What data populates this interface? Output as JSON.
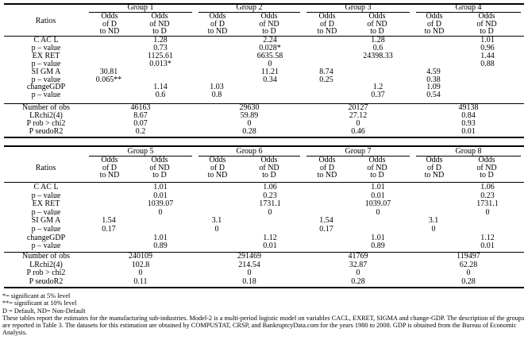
{
  "table1": {
    "ratios_label": "Ratios",
    "groups": [
      "Group 1",
      "Group 2",
      "Group 3",
      "Group 4"
    ],
    "col_heads": [
      "Odds\nof D\nto ND",
      "Odds\nof ND\nto D"
    ],
    "rows": [
      {
        "label": "C AC L",
        "cells": [
          "",
          "1.28",
          "",
          "2.24",
          "",
          "1.28",
          "",
          "1.01"
        ]
      },
      {
        "label": "p – value",
        "cells": [
          "",
          "0.73",
          "",
          "0.028*",
          "",
          "0.6",
          "",
          "0.96"
        ]
      },
      {
        "label": "EX RET",
        "cells": [
          "",
          "1125.61",
          "",
          "6635.58",
          "",
          "24398.33",
          "",
          "1.44"
        ]
      },
      {
        "label": "p – value",
        "cells": [
          "",
          "0.013*",
          "",
          "0",
          "",
          "",
          "",
          "0.88"
        ]
      },
      {
        "label": "SI GM A",
        "cells": [
          "30.81",
          "",
          "",
          "11.21",
          "8.74",
          "",
          "4.59",
          ""
        ]
      },
      {
        "label": "p – value",
        "cells": [
          "0.065**",
          "",
          "",
          "0.34",
          "0.25",
          "",
          "0.38",
          ""
        ]
      },
      {
        "label": "changeGDP",
        "cells": [
          "",
          "1.14",
          "1.03",
          "",
          "",
          "1.2",
          "1.09",
          ""
        ]
      },
      {
        "label": "p – value",
        "cells": [
          "",
          "0.6",
          "0.8",
          "",
          "",
          "0.37",
          "0.54",
          ""
        ]
      }
    ],
    "stats": [
      {
        "label": "Number of obs",
        "values": [
          "46163",
          "29630",
          "20127",
          "49138"
        ]
      },
      {
        "label": "LRchi2(4)",
        "values": [
          "8.67",
          "59.89",
          "27.12",
          "0.84"
        ]
      },
      {
        "label": "P rob > chi2",
        "values": [
          "0.07",
          "0",
          "0",
          "0.93"
        ]
      },
      {
        "label": "P seudoR2",
        "values": [
          "0.2",
          "0.28",
          "0.46",
          "0.01"
        ]
      }
    ]
  },
  "table2": {
    "ratios_label": "Ratios",
    "groups": [
      "Group 5",
      "Group 6",
      "Group 7",
      "Group 8"
    ],
    "col_heads": [
      "Odds\nof D\nto ND",
      "Odds\nof ND\nto D"
    ],
    "rows": [
      {
        "label": "C AC L",
        "cells": [
          "",
          "1.01",
          "",
          "1.06",
          "",
          "1.01",
          "",
          "1.06"
        ]
      },
      {
        "label": "p – value",
        "cells": [
          "",
          "0.01",
          "",
          "0.23",
          "",
          "0.01",
          "",
          "0.23"
        ]
      },
      {
        "label": "EX RET",
        "cells": [
          "",
          "1039.07",
          "",
          "1731.1",
          "",
          "1039.07",
          "",
          "1731.1"
        ]
      },
      {
        "label": "p – value",
        "cells": [
          "",
          "0",
          "",
          "0",
          "",
          "0",
          "",
          "0"
        ]
      },
      {
        "label": "SI GM A",
        "cells": [
          "1.54",
          "",
          "3.1",
          "",
          "1.54",
          "",
          "3.1",
          ""
        ]
      },
      {
        "label": "p – value",
        "cells": [
          "0.17",
          "",
          "0",
          "",
          "0.17",
          "",
          "0",
          ""
        ]
      },
      {
        "label": "changeGDP",
        "cells": [
          "",
          "1.01",
          "",
          "1.12",
          "",
          "1.01",
          "",
          "1.12"
        ]
      },
      {
        "label": "p – value",
        "cells": [
          "",
          "0.89",
          "",
          "0.01",
          "",
          "0.89",
          "",
          "0.01"
        ]
      }
    ],
    "stats": [
      {
        "label": "Number of obs",
        "values": [
          "240109",
          "291469",
          "41769",
          "119497"
        ]
      },
      {
        "label": "LRchi2(4)",
        "values": [
          "102.8",
          "214.54",
          "32.87",
          "62.28"
        ]
      },
      {
        "label": "P rob > chi2",
        "values": [
          "0",
          "0",
          "0",
          "0"
        ]
      },
      {
        "label": "P seudoR2",
        "values": [
          "0.11",
          "0.18",
          "0.28",
          "0.28"
        ]
      }
    ]
  },
  "notes": {
    "sig5": "*= significant at 5% level",
    "sig10": "**= significant at 10% level",
    "legend": "D = Default, ND= Non-Default",
    "description": "These tables report the estimates for the manufacturing sub-industries. Model-2 is a multi-period logistic model on variables CACL, EXRET, SIGMA and change-GDP. The description of the groups are reported in Table 3. The datasets for this estimation are obtained by COMPUSTAT, CRSP, and BankruptcyData.com for the years 1980 to 2008. GDP is obtained from the Bureau of Economic Analysis."
  }
}
